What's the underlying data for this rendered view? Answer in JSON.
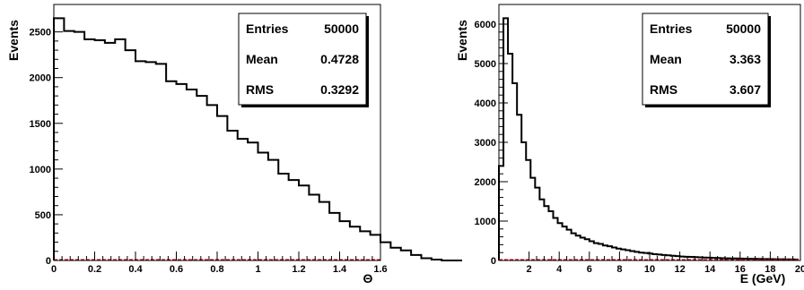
{
  "chart_data": [
    {
      "type": "histogram",
      "xlabel": "Θ",
      "ylabel": "Events",
      "xlim": [
        0,
        1.6
      ],
      "ylim": [
        0,
        2800
      ],
      "xticks": [
        0,
        0.2,
        0.4,
        0.6,
        0.8,
        1,
        1.2,
        1.4,
        1.6
      ],
      "xtick_labels": [
        "0",
        "0.2",
        "0.4",
        "0.6",
        "0.8",
        "1",
        "1.2",
        "1.4",
        "1.6"
      ],
      "yticks": [
        0,
        500,
        1000,
        1500,
        2000,
        2500
      ],
      "ytick_labels": [
        "0",
        "500",
        "1000",
        "1500",
        "2000",
        "2500"
      ],
      "bin_width": 0.05,
      "bin_start": 0,
      "values": [
        2650,
        2510,
        2500,
        2420,
        2410,
        2380,
        2420,
        2300,
        2180,
        2170,
        2150,
        1960,
        1930,
        1870,
        1800,
        1700,
        1580,
        1420,
        1330,
        1290,
        1180,
        1100,
        950,
        880,
        820,
        720,
        640,
        520,
        430,
        370,
        320,
        280,
        200,
        140,
        110,
        60,
        25,
        10,
        0,
        0
      ],
      "stats": [
        {
          "label": "Entries",
          "value": "50000"
        },
        {
          "label": "Mean",
          "value": "0.4728"
        },
        {
          "label": "RMS",
          "value": "0.3292"
        }
      ],
      "legend_position": "top-right",
      "colors": {
        "line": "#000000",
        "baseline": "#cc0000"
      }
    },
    {
      "type": "histogram",
      "xlabel": "E (GeV)",
      "ylabel": "Events",
      "xlim": [
        0,
        20
      ],
      "ylim": [
        0,
        6500
      ],
      "xticks": [
        2,
        4,
        6,
        8,
        10,
        12,
        14,
        16,
        18,
        20
      ],
      "xtick_labels": [
        "2",
        "4",
        "6",
        "8",
        "10",
        "12",
        "14",
        "16",
        "18",
        "20"
      ],
      "yticks": [
        0,
        1000,
        2000,
        3000,
        4000,
        5000,
        6000
      ],
      "ytick_labels": [
        "0",
        "1000",
        "2000",
        "3000",
        "4000",
        "5000",
        "6000"
      ],
      "bin_width": 0.3,
      "bin_start": 0,
      "values": [
        2400,
        6150,
        5250,
        4500,
        3700,
        3000,
        2550,
        2100,
        1850,
        1550,
        1380,
        1250,
        1080,
        950,
        860,
        780,
        690,
        630,
        580,
        540,
        490,
        440,
        420,
        380,
        360,
        330,
        300,
        280,
        260,
        240,
        220,
        200,
        190,
        175,
        160,
        150,
        140,
        130,
        120,
        110,
        100,
        95,
        90,
        85,
        80,
        75,
        70,
        66,
        62,
        58,
        55,
        52,
        50,
        48,
        46,
        44,
        42,
        40,
        38,
        36,
        34,
        32,
        30,
        28,
        27,
        26
      ],
      "stats": [
        {
          "label": "Entries",
          "value": "50000"
        },
        {
          "label": "Mean",
          "value": "3.363"
        },
        {
          "label": "RMS",
          "value": "3.607"
        }
      ],
      "legend_position": "top-right",
      "colors": {
        "line": "#000000",
        "baseline": "#cc0000"
      }
    }
  ]
}
